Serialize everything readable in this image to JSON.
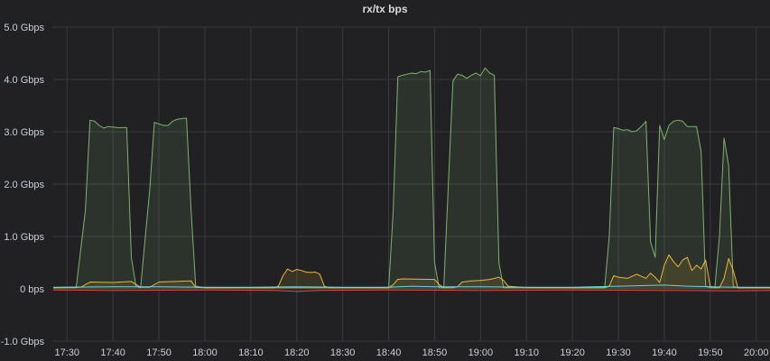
{
  "panel": {
    "title": "rx/tx bps"
  },
  "chart_data": {
    "type": "line",
    "title": "rx/tx bps",
    "xlabel": "",
    "ylabel": "",
    "unit": "Gbps",
    "ylim": [
      -1.0,
      5.0
    ],
    "xlim": [
      "17:27",
      "20:03"
    ],
    "grid": true,
    "legend": "none",
    "y_ticks": [
      "-1.0 Gbps",
      "0 bps",
      "1.0 Gbps",
      "2.0 Gbps",
      "3.0 Gbps",
      "4.0 Gbps",
      "5.0 Gbps"
    ],
    "y_tick_values": [
      -1.0,
      0,
      1.0,
      2.0,
      3.0,
      4.0,
      5.0
    ],
    "x_ticks": [
      "17:30",
      "17:40",
      "17:50",
      "18:00",
      "18:10",
      "18:20",
      "18:30",
      "18:40",
      "18:50",
      "19:00",
      "19:10",
      "19:20",
      "19:30",
      "19:40",
      "19:50",
      "20:00"
    ],
    "x_tick_values": [
      "17:30",
      "17:40",
      "17:50",
      "18:00",
      "18:10",
      "18:20",
      "18:30",
      "18:40",
      "18:50",
      "19:00",
      "19:10",
      "19:20",
      "19:30",
      "19:40",
      "19:50",
      "20:00"
    ],
    "colors": {
      "green": "#7eb26d",
      "yellow": "#eab839",
      "cyan": "#6ed0e0",
      "red": "#e24d42"
    },
    "series": [
      {
        "color": "#7eb26d",
        "fill": true,
        "x": [
          "17:27",
          "17:32",
          "17:34",
          "17:35",
          "17:36",
          "17:37",
          "17:38",
          "17:39",
          "17:41",
          "17:43",
          "17:44",
          "17:45",
          "17:46",
          "17:48",
          "17:49",
          "17:50",
          "17:51",
          "17:52",
          "17:53",
          "17:54",
          "17:56",
          "17:57",
          "17:58",
          "18:00",
          "18:05",
          "18:10",
          "18:15",
          "18:20",
          "18:25",
          "18:30",
          "18:35",
          "18:40",
          "18:41",
          "18:42",
          "18:43",
          "18:44",
          "18:45",
          "18:46",
          "18:47",
          "18:48",
          "18:49",
          "18:50",
          "18:51",
          "18:52",
          "18:53",
          "18:54",
          "18:55",
          "18:56",
          "18:57",
          "18:58",
          "18:59",
          "19:00",
          "19:01",
          "19:02",
          "19:03",
          "19:04",
          "19:05",
          "19:06",
          "19:07",
          "19:08",
          "19:10",
          "19:15",
          "19:20",
          "19:27",
          "19:28",
          "19:29",
          "19:30",
          "19:31",
          "19:32",
          "19:33",
          "19:34",
          "19:35",
          "19:36",
          "19:37",
          "19:38",
          "19:39",
          "19:40",
          "19:41",
          "19:42",
          "19:43",
          "19:44",
          "19:45",
          "19:46",
          "19:47",
          "19:48",
          "19:49",
          "19:50",
          "19:51",
          "19:52",
          "19:53",
          "19:54",
          "19:55",
          "19:56",
          "19:58",
          "20:03"
        ],
        "y": [
          0.02,
          0.02,
          1.5,
          3.22,
          3.2,
          3.12,
          3.07,
          3.1,
          3.08,
          3.08,
          0.6,
          0.05,
          0.02,
          1.9,
          3.18,
          3.15,
          3.12,
          3.12,
          3.2,
          3.24,
          3.26,
          1.5,
          0.05,
          0.02,
          0.02,
          0.02,
          0.02,
          0.02,
          0.02,
          0.02,
          0.02,
          0.02,
          1.5,
          4.05,
          4.08,
          4.1,
          4.12,
          4.11,
          4.15,
          4.14,
          4.17,
          0.5,
          0.02,
          0.02,
          2.0,
          3.97,
          4.1,
          4.08,
          4.02,
          4.08,
          4.12,
          4.07,
          4.22,
          4.12,
          4.08,
          0.5,
          0.02,
          0.02,
          0.02,
          0.02,
          0.02,
          0.02,
          0.02,
          0.02,
          1.0,
          3.08,
          3.06,
          3.03,
          3.04,
          3.0,
          3.02,
          3.1,
          3.2,
          0.9,
          0.6,
          3.12,
          2.85,
          3.12,
          3.2,
          3.22,
          3.2,
          3.1,
          3.1,
          3.1,
          2.62,
          0.05,
          0.02,
          0.02,
          1.0,
          2.88,
          2.35,
          0.05,
          0.02,
          0.02,
          0.02
        ]
      },
      {
        "color": "#eab839",
        "fill": true,
        "x": [
          "17:27",
          "17:33",
          "17:35",
          "17:40",
          "17:44",
          "17:46",
          "17:48",
          "17:50",
          "17:57",
          "17:58",
          "18:00",
          "18:15",
          "18:16",
          "18:17",
          "18:18",
          "18:19",
          "18:20",
          "18:21",
          "18:22",
          "18:23",
          "18:24",
          "18:25",
          "18:26",
          "18:27",
          "18:40",
          "18:41",
          "18:42",
          "18:43",
          "18:50",
          "18:51",
          "18:52",
          "18:54",
          "18:55",
          "18:56",
          "18:58",
          "19:00",
          "19:02",
          "19:04",
          "19:05",
          "19:06",
          "19:10",
          "19:27",
          "19:28",
          "19:29",
          "19:30",
          "19:32",
          "19:34",
          "19:36",
          "19:37",
          "19:38",
          "19:39",
          "19:40",
          "19:41",
          "19:42",
          "19:43",
          "19:44",
          "19:45",
          "19:46",
          "19:47",
          "19:48",
          "19:49",
          "19:50",
          "19:51",
          "19:52",
          "19:53",
          "19:54",
          "19:55",
          "19:56",
          "20:03"
        ],
        "y": [
          0.02,
          0.03,
          0.13,
          0.12,
          0.14,
          0.03,
          0.03,
          0.13,
          0.15,
          0.03,
          0.02,
          0.02,
          0.05,
          0.25,
          0.38,
          0.33,
          0.37,
          0.35,
          0.32,
          0.31,
          0.32,
          0.28,
          0.05,
          0.02,
          0.02,
          0.08,
          0.18,
          0.19,
          0.18,
          0.08,
          0.02,
          0.02,
          0.04,
          0.13,
          0.15,
          0.16,
          0.18,
          0.22,
          0.16,
          0.05,
          0.02,
          0.02,
          0.05,
          0.25,
          0.22,
          0.2,
          0.28,
          0.2,
          0.3,
          0.22,
          0.12,
          0.45,
          0.65,
          0.52,
          0.42,
          0.55,
          0.6,
          0.35,
          0.45,
          0.38,
          0.55,
          0.05,
          0.02,
          0.02,
          0.2,
          0.58,
          0.35,
          0.02,
          0.02
        ]
      },
      {
        "color": "#6ed0e0",
        "fill": false,
        "x": [
          "17:27",
          "17:40",
          "17:50",
          "18:00",
          "18:10",
          "18:20",
          "18:30",
          "18:40",
          "18:45",
          "18:50",
          "19:00",
          "19:10",
          "19:20",
          "19:30",
          "19:40",
          "19:45",
          "19:50",
          "19:55",
          "20:03"
        ],
        "y": [
          0.03,
          0.04,
          0.04,
          0.03,
          0.03,
          0.04,
          0.03,
          0.03,
          0.05,
          0.04,
          0.04,
          0.03,
          0.03,
          0.05,
          0.07,
          0.05,
          0.04,
          0.03,
          0.03
        ]
      },
      {
        "color": "#e24d42",
        "fill": false,
        "x": [
          "17:27",
          "17:40",
          "18:00",
          "18:15",
          "18:20",
          "18:25",
          "18:40",
          "19:00",
          "19:20",
          "19:40",
          "19:55",
          "20:03"
        ],
        "y": [
          -0.02,
          -0.03,
          -0.02,
          -0.03,
          -0.05,
          -0.03,
          -0.02,
          -0.03,
          -0.02,
          -0.03,
          -0.04,
          -0.03
        ]
      }
    ]
  }
}
